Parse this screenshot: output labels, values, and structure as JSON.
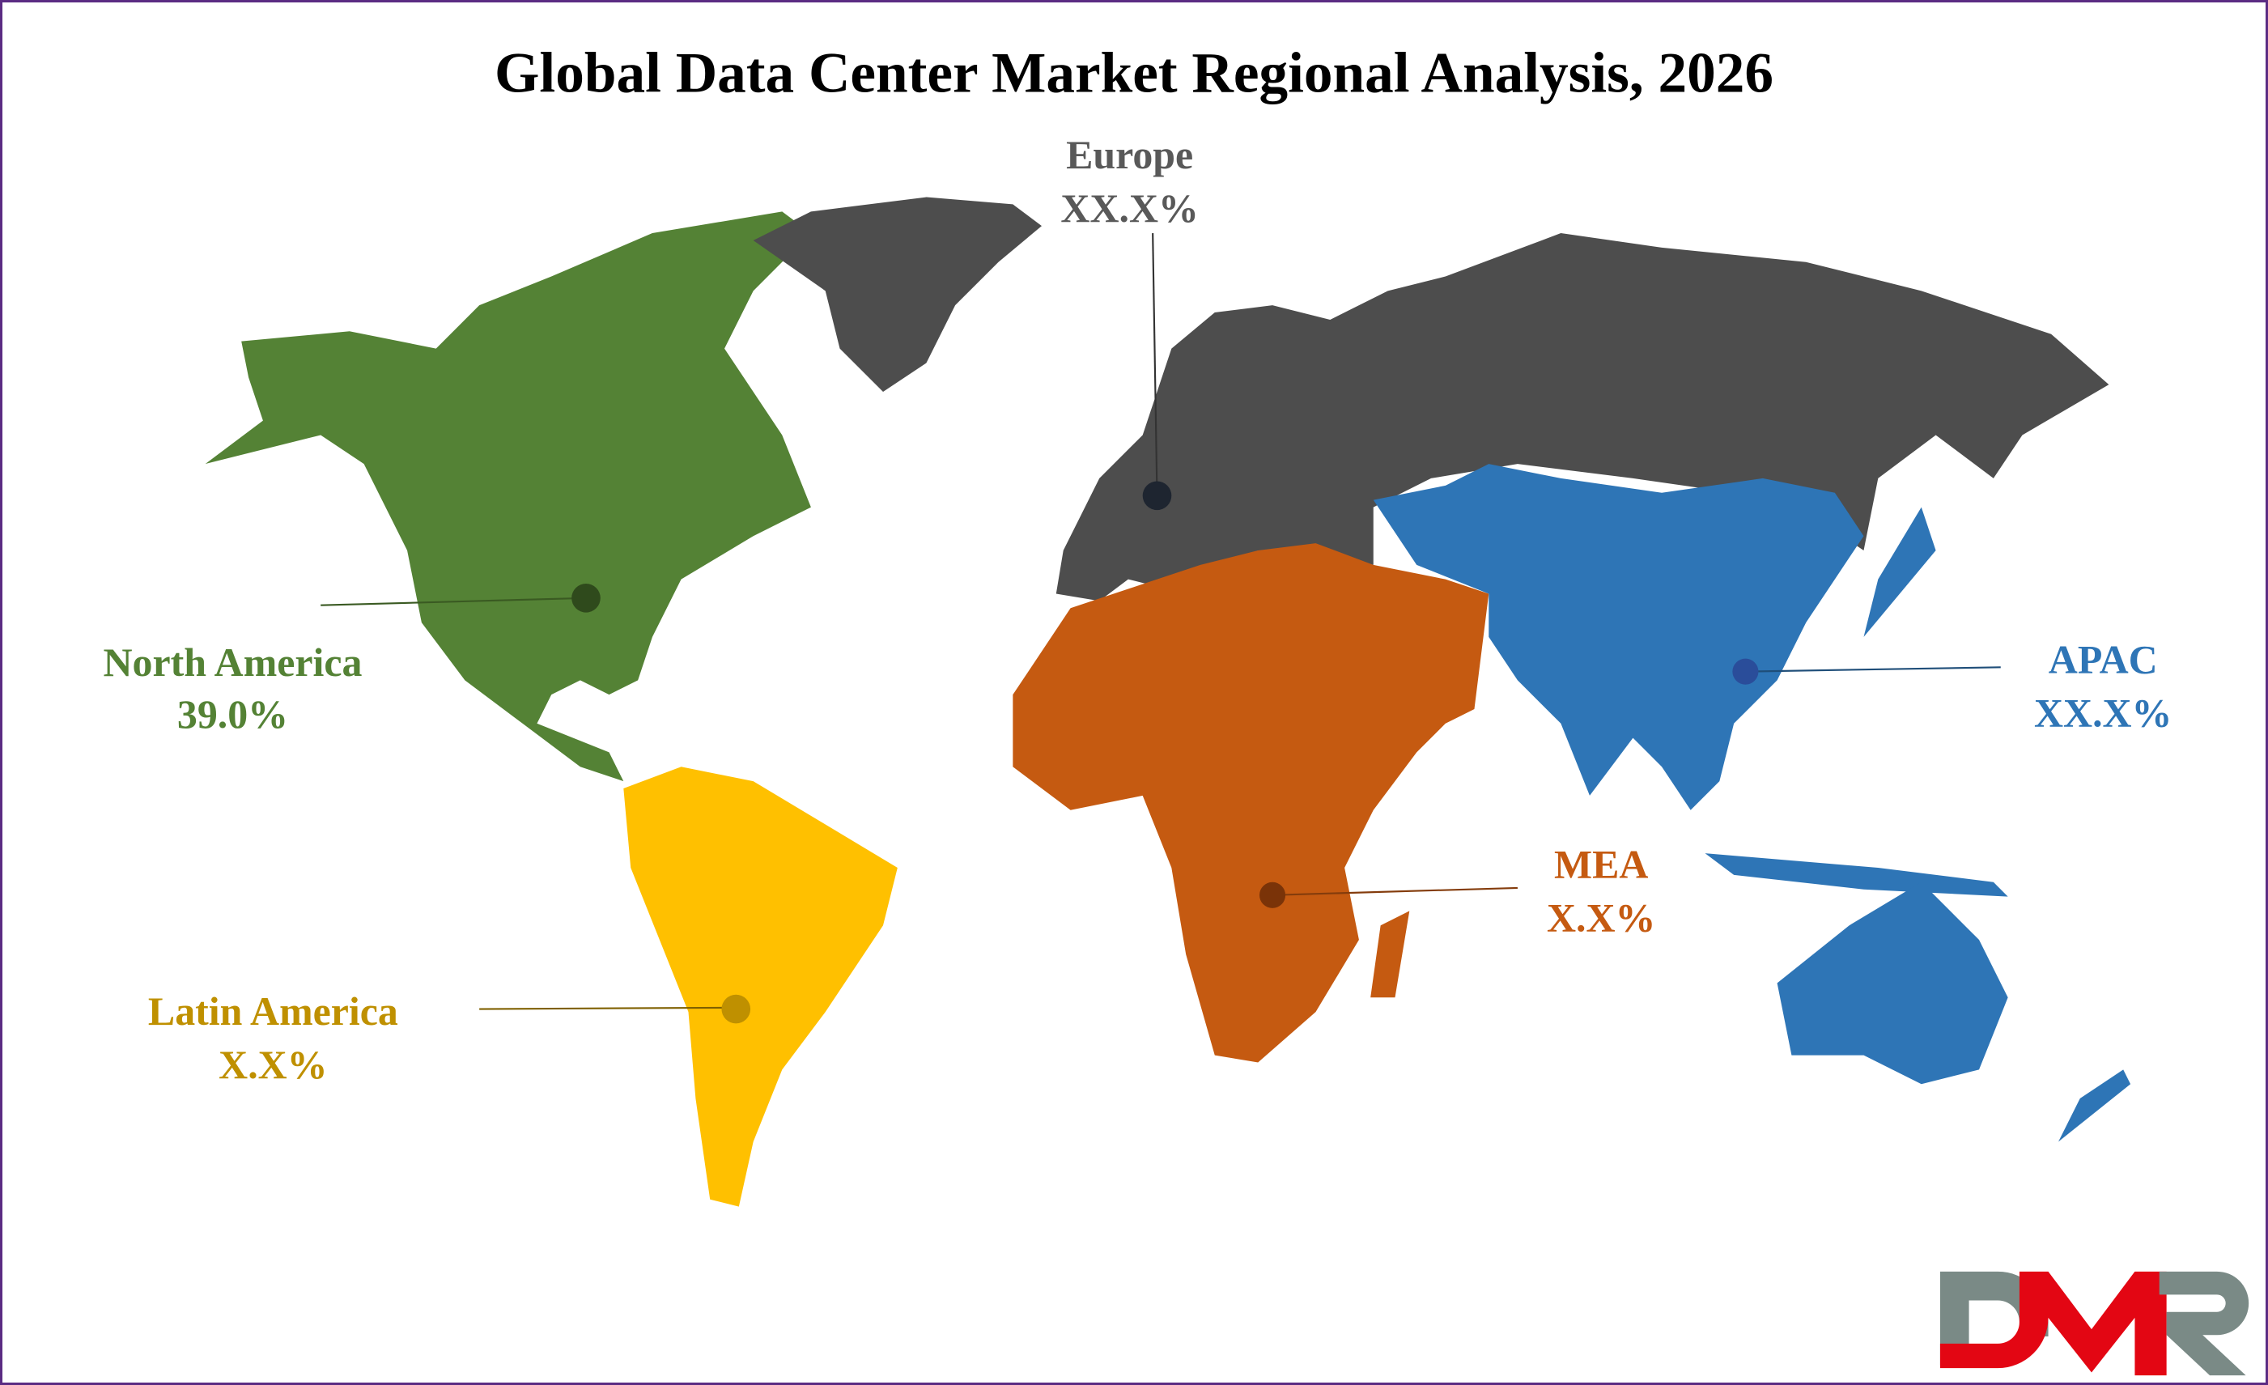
{
  "title": "Global Data Center Market Regional Analysis, 2026",
  "colors": {
    "north_america": "#548235",
    "europe": "#4d4d4d",
    "apac": "#2e75b6",
    "mea": "#c55a11",
    "latin_america": "#ffc000",
    "border": "#5b2c83"
  },
  "regions": {
    "north_america": {
      "name": "North America",
      "value": "39.0%"
    },
    "europe": {
      "name": "Europe",
      "value": "XX.X%"
    },
    "apac": {
      "name": "APAC",
      "value": "XX.X%"
    },
    "mea": {
      "name": "MEA",
      "value": "X.X%"
    },
    "latin_america": {
      "name": "Latin America",
      "value": "X.X%"
    }
  },
  "logo": {
    "text": "DMR"
  }
}
